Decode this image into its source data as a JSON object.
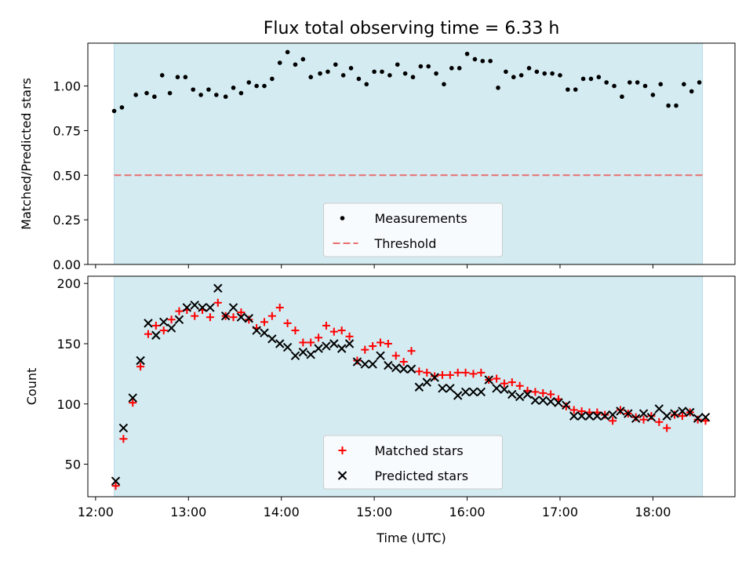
{
  "title": "Flux total observing time = 6.33 h",
  "chart_data": [
    {
      "type": "scatter",
      "panel": "top",
      "ylabel": "Matched/Predicted stars",
      "xlim": [
        "11:55",
        "18:53"
      ],
      "ylim": [
        0,
        1.24
      ],
      "yticks": [
        0.0,
        0.25,
        0.5,
        0.75,
        1.0
      ],
      "ytick_labels": [
        "0.00",
        "0.25",
        "0.50",
        "0.75",
        "1.00"
      ],
      "observing_window": [
        "12:12",
        "18:32"
      ],
      "window_color": "#d4ebf2",
      "legend_position": "lower center",
      "series": [
        {
          "name": "Measurements",
          "color": "#000000",
          "marker": "dot",
          "x": [
            "12:12",
            "12:17",
            "12:26",
            "12:33",
            "12:38",
            "12:43",
            "12:48",
            "12:53",
            "12:58",
            "13:03",
            "13:08",
            "13:13",
            "13:18",
            "13:24",
            "13:29",
            "13:34",
            "13:39",
            "13:44",
            "13:49",
            "13:54",
            "13:59",
            "14:04",
            "14:09",
            "14:14",
            "14:19",
            "14:25",
            "14:30",
            "14:35",
            "14:40",
            "14:45",
            "14:50",
            "14:55",
            "15:00",
            "15:05",
            "15:10",
            "15:15",
            "15:20",
            "15:25",
            "15:30",
            "15:35",
            "15:40",
            "15:45",
            "15:50",
            "15:55",
            "16:00",
            "16:05",
            "16:10",
            "16:15",
            "16:20",
            "16:25",
            "16:30",
            "16:35",
            "16:40",
            "16:45",
            "16:50",
            "16:55",
            "17:00",
            "17:05",
            "17:10",
            "17:15",
            "17:20",
            "17:25",
            "17:30",
            "17:35",
            "17:40",
            "17:45",
            "17:50",
            "17:55",
            "18:00",
            "18:05",
            "18:10",
            "18:15",
            "18:20",
            "18:25",
            "18:30"
          ],
          "y": [
            0.86,
            0.88,
            0.95,
            0.96,
            0.94,
            1.06,
            0.96,
            1.05,
            1.05,
            0.98,
            0.95,
            0.98,
            0.95,
            0.94,
            0.99,
            0.96,
            1.02,
            1.0,
            1.0,
            1.04,
            1.13,
            1.19,
            1.12,
            1.15,
            1.05,
            1.07,
            1.08,
            1.12,
            1.06,
            1.1,
            1.04,
            1.01,
            1.08,
            1.08,
            1.06,
            1.12,
            1.07,
            1.05,
            1.11,
            1.11,
            1.07,
            1.01,
            1.1,
            1.1,
            1.18,
            1.15,
            1.14,
            1.14,
            0.99,
            1.08,
            1.05,
            1.06,
            1.1,
            1.08,
            1.07,
            1.07,
            1.06,
            0.98,
            0.98,
            1.04,
            1.04,
            1.05,
            1.02,
            1.0,
            0.94,
            1.02,
            1.02,
            1.0,
            0.95,
            1.01,
            0.89,
            0.89,
            1.01,
            0.97,
            1.02
          ]
        },
        {
          "name": "Threshold",
          "color": "#e87070",
          "style": "dashed",
          "value": 0.5
        }
      ]
    },
    {
      "type": "scatter",
      "panel": "bottom",
      "xlabel": "Time (UTC)",
      "ylabel": "Count",
      "xlim": [
        "11:55",
        "18:53"
      ],
      "ylim": [
        23,
        206
      ],
      "xticks": [
        "12:00",
        "13:00",
        "14:00",
        "15:00",
        "16:00",
        "17:00",
        "18:00"
      ],
      "yticks": [
        50,
        100,
        150,
        200
      ],
      "ytick_labels": [
        "50",
        "100",
        "150",
        "200"
      ],
      "observing_window": [
        "12:12",
        "18:32"
      ],
      "window_color": "#d4ebf2",
      "legend_position": "lower center",
      "series": [
        {
          "name": "Matched stars",
          "color": "#ff0000",
          "marker": "plus",
          "x": [
            "12:13",
            "12:18",
            "12:24",
            "12:29",
            "12:34",
            "12:39",
            "12:44",
            "12:49",
            "12:54",
            "12:59",
            "13:04",
            "13:09",
            "13:14",
            "13:19",
            "13:24",
            "13:29",
            "13:34",
            "13:39",
            "13:44",
            "13:49",
            "13:54",
            "13:59",
            "14:04",
            "14:09",
            "14:14",
            "14:19",
            "14:24",
            "14:29",
            "14:34",
            "14:39",
            "14:44",
            "14:49",
            "14:54",
            "14:59",
            "15:04",
            "15:09",
            "15:14",
            "15:19",
            "15:24",
            "15:29",
            "15:34",
            "15:39",
            "15:44",
            "15:49",
            "15:54",
            "15:59",
            "16:04",
            "16:09",
            "16:14",
            "16:19",
            "16:24",
            "16:29",
            "16:34",
            "16:39",
            "16:44",
            "16:49",
            "16:54",
            "16:59",
            "17:04",
            "17:09",
            "17:14",
            "17:19",
            "17:24",
            "17:29",
            "17:34",
            "17:39",
            "17:44",
            "17:49",
            "17:54",
            "17:59",
            "18:04",
            "18:09",
            "18:14",
            "18:19",
            "18:24",
            "18:29",
            "18:34"
          ],
          "y": [
            32,
            71,
            101,
            131,
            158,
            165,
            161,
            170,
            177,
            178,
            173,
            178,
            172,
            184,
            173,
            172,
            176,
            170,
            163,
            168,
            173,
            180,
            167,
            161,
            151,
            151,
            155,
            165,
            160,
            161,
            156,
            136,
            145,
            148,
            151,
            150,
            140,
            135,
            144,
            127,
            126,
            123,
            124,
            124,
            126,
            126,
            125,
            126,
            120,
            121,
            117,
            118,
            115,
            111,
            110,
            109,
            108,
            104,
            98,
            95,
            94,
            93,
            93,
            91,
            86,
            95,
            92,
            89,
            87,
            90,
            85,
            80,
            91,
            90,
            93,
            87,
            86
          ]
        },
        {
          "name": "Predicted stars",
          "color": "#000000",
          "marker": "x",
          "x": [
            "12:13",
            "12:18",
            "12:24",
            "12:29",
            "12:34",
            "12:39",
            "12:44",
            "12:49",
            "12:54",
            "12:59",
            "13:04",
            "13:09",
            "13:14",
            "13:19",
            "13:24",
            "13:29",
            "13:34",
            "13:39",
            "13:44",
            "13:49",
            "13:54",
            "13:59",
            "14:04",
            "14:09",
            "14:14",
            "14:19",
            "14:24",
            "14:29",
            "14:34",
            "14:39",
            "14:44",
            "14:49",
            "14:54",
            "14:59",
            "15:04",
            "15:09",
            "15:14",
            "15:19",
            "15:24",
            "15:29",
            "15:34",
            "15:39",
            "15:44",
            "15:49",
            "15:54",
            "15:59",
            "16:04",
            "16:09",
            "16:14",
            "16:19",
            "16:24",
            "16:29",
            "16:34",
            "16:39",
            "16:44",
            "16:49",
            "16:54",
            "16:59",
            "17:04",
            "17:09",
            "17:14",
            "17:19",
            "17:24",
            "17:29",
            "17:34",
            "17:39",
            "17:44",
            "17:49",
            "17:54",
            "17:59",
            "18:04",
            "18:09",
            "18:14",
            "18:19",
            "18:24",
            "18:29",
            "18:34"
          ],
          "y": [
            36,
            80,
            105,
            136,
            167,
            157,
            168,
            163,
            170,
            180,
            182,
            180,
            180,
            196,
            173,
            180,
            172,
            171,
            161,
            159,
            154,
            150,
            147,
            140,
            143,
            141,
            146,
            148,
            150,
            146,
            150,
            135,
            133,
            133,
            140,
            132,
            130,
            129,
            129,
            114,
            118,
            122,
            113,
            113,
            107,
            110,
            110,
            110,
            120,
            113,
            112,
            108,
            106,
            108,
            103,
            103,
            102,
            101,
            99,
            90,
            90,
            90,
            90,
            90,
            91,
            94,
            92,
            88,
            92,
            89,
            96,
            90,
            92,
            94,
            93,
            88,
            89
          ]
        }
      ]
    }
  ]
}
